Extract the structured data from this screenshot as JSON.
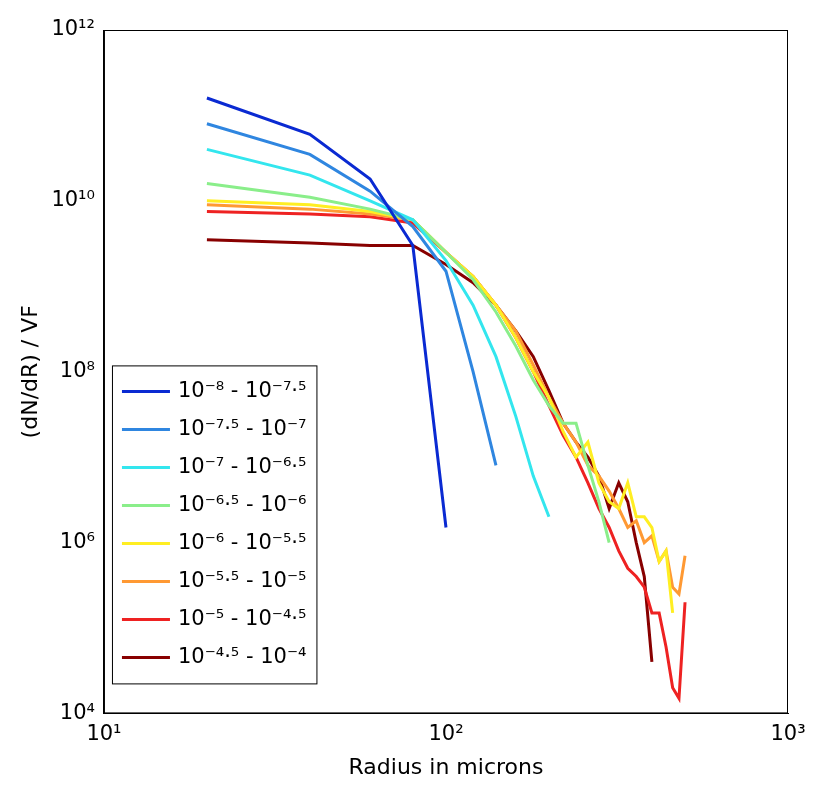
{
  "chart_data": {
    "type": "line",
    "x_label": "Radius in microns",
    "y_label": "(dN/dR) / VF",
    "log": true,
    "grid": false,
    "legend": "lower left",
    "xlim": [
      10,
      1000
    ],
    "xticks": [
      {
        "value": 10,
        "label": "10¹"
      },
      {
        "value": 100,
        "label": "10²"
      },
      {
        "value": 1000,
        "label": "10³"
      }
    ],
    "ylim": [
      10000,
      1000000000000
    ],
    "yticks": [
      {
        "value": 10000,
        "label": "10⁴"
      },
      {
        "value": 1000000,
        "label": "10⁶"
      },
      {
        "value": 100000000,
        "label": "10⁸"
      },
      {
        "value": 10000000000,
        "label": "10¹⁰"
      },
      {
        "value": 1000000000000,
        "label": "10¹²"
      }
    ],
    "series": [
      {
        "name": "10⁻⁸ - 10⁻⁷·⁵",
        "color": "#0a2ad2",
        "x": [
          20,
          40,
          60,
          80,
          100
        ],
        "values": [
          160000000000.0,
          60000000000.0,
          18000000000.0,
          3000000000.0,
          1500000.0
        ]
      },
      {
        "name": "10⁻⁷·⁵ - 10⁻⁷",
        "color": "#2f86e0",
        "x": [
          20,
          40,
          60,
          80,
          100,
          120,
          140
        ],
        "values": [
          80000000000.0,
          35000000000.0,
          13000000000.0,
          5000000000.0,
          1500000000.0,
          100000000.0,
          8000000.0
        ]
      },
      {
        "name": "10⁻⁷ - 10⁻⁶·⁵",
        "color": "#33e6ee",
        "x": [
          20,
          40,
          60,
          80,
          100,
          120,
          140,
          160,
          180,
          200
        ],
        "values": [
          40000000000.0,
          20000000000.0,
          10000000000.0,
          6000000000.0,
          2000000000.0,
          600000000.0,
          150000000.0,
          30000000.0,
          6000000.0,
          2000000.0
        ]
      },
      {
        "name": "10⁻⁶·⁵ - 10⁻⁶",
        "color": "#8aee8a",
        "x": [
          20,
          40,
          60,
          80,
          100,
          120,
          140,
          160,
          180,
          200,
          220,
          240,
          260,
          280,
          300
        ],
        "values": [
          16000000000.0,
          11000000000.0,
          8000000000.0,
          6000000000.0,
          2500000000.0,
          1200000000.0,
          500000000.0,
          200000000.0,
          80000000.0,
          40000000.0,
          25000000.0,
          25000000.0,
          8000000.0,
          3000000.0,
          1000000.0
        ]
      },
      {
        "name": "10⁻⁶ - 10⁻⁵·⁵",
        "color": "#ffee22",
        "x": [
          20,
          40,
          60,
          80,
          100,
          120,
          140,
          160,
          180,
          200,
          220,
          240,
          260,
          280,
          300,
          320,
          340,
          360,
          380,
          400,
          420,
          440,
          460
        ],
        "values": [
          10000000000.0,
          9000000000.0,
          7500000000.0,
          6000000000.0,
          2500000000.0,
          1300000000.0,
          600000000.0,
          250000000.0,
          100000000.0,
          50000000.0,
          20000000.0,
          10000000.0,
          15000000.0,
          5000000.0,
          3000000.0,
          2500000.0,
          5000000.0,
          2000000.0,
          2000000.0,
          1500000.0,
          600000.0,
          800000.0,
          150000.0
        ]
      },
      {
        "name": "10⁻⁵·⁵ - 10⁻⁵",
        "color": "#ff9933",
        "x": [
          20,
          40,
          60,
          80,
          100,
          120,
          140,
          160,
          180,
          200,
          220,
          240,
          260,
          280,
          300,
          320,
          340,
          360,
          380,
          400,
          420,
          440,
          460,
          480,
          500
        ],
        "values": [
          9000000000.0,
          8000000000.0,
          7000000000.0,
          6000000000.0,
          2500000000.0,
          1300000000.0,
          600000000.0,
          300000000.0,
          120000000.0,
          50000000.0,
          25000000.0,
          15000000.0,
          8000000.0,
          6000000.0,
          4000000.0,
          2500000.0,
          1500000.0,
          1800000.0,
          1000000.0,
          1200000.0,
          600000.0,
          800000.0,
          300000.0,
          250000.0,
          700000.0
        ]
      },
      {
        "name": "10⁻⁵ - 10⁻⁴·⁵",
        "color": "#ee2222",
        "x": [
          20,
          40,
          60,
          80,
          100,
          120,
          140,
          160,
          180,
          200,
          220,
          240,
          260,
          280,
          300,
          320,
          340,
          360,
          380,
          400,
          420,
          440,
          460,
          480,
          500
        ],
        "values": [
          7500000000.0,
          7000000000.0,
          6500000000.0,
          5500000000.0,
          2500000000.0,
          1300000000.0,
          600000000.0,
          250000000.0,
          100000000.0,
          40000000.0,
          18000000.0,
          10000000.0,
          5000000.0,
          2500000.0,
          1500000.0,
          800000.0,
          500000.0,
          400000.0,
          300000.0,
          150000.0,
          150000.0,
          60000.0,
          20000.0,
          15000.0,
          200000.0
        ]
      },
      {
        "name": "10⁻⁴·⁵ - 10⁻⁴",
        "color": "#880000",
        "x": [
          20,
          40,
          60,
          80,
          100,
          120,
          140,
          160,
          180,
          200,
          220,
          240,
          260,
          280,
          300,
          320,
          340,
          360,
          380,
          400
        ],
        "values": [
          3500000000.0,
          3200000000.0,
          3000000000.0,
          3000000000.0,
          1800000000.0,
          1100000000.0,
          600000000.0,
          300000000.0,
          150000000.0,
          60000000.0,
          25000000.0,
          15000000.0,
          10000000.0,
          6000000.0,
          2500000.0,
          5000000.0,
          3000000.0,
          1000000.0,
          400000.0,
          40000.0
        ]
      }
    ]
  }
}
